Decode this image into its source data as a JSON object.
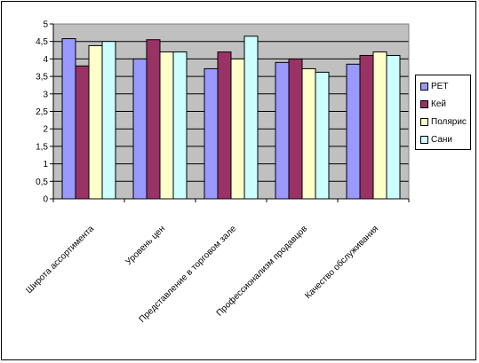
{
  "chart_data": {
    "type": "bar",
    "categories": [
      "Широта ассортимента",
      "Уровень цен",
      "Представление в торговом зале",
      "Профессионализм продавцов",
      "Качество обслуживания"
    ],
    "series": [
      {
        "name": "РЕТ",
        "color": "#9999FF",
        "values": [
          4.58,
          4.0,
          3.72,
          3.9,
          3.85
        ]
      },
      {
        "name": "Кей",
        "color": "#993366",
        "values": [
          3.8,
          4.55,
          4.2,
          4.0,
          4.1
        ]
      },
      {
        "name": "Полярис",
        "color": "#FFFFCC",
        "values": [
          4.38,
          4.2,
          4.0,
          3.72,
          4.2
        ]
      },
      {
        "name": "Сани",
        "color": "#CCFFFF",
        "values": [
          4.5,
          4.2,
          4.65,
          3.62,
          4.1
        ]
      }
    ],
    "yticks": [
      "0",
      "0,5",
      "1",
      "1,5",
      "2",
      "2,5",
      "3",
      "3,5",
      "4",
      "4,5",
      "5"
    ],
    "ylim": [
      0,
      5
    ],
    "plot_background": "#C0C0C0",
    "grid": true,
    "legend_position": "right"
  }
}
